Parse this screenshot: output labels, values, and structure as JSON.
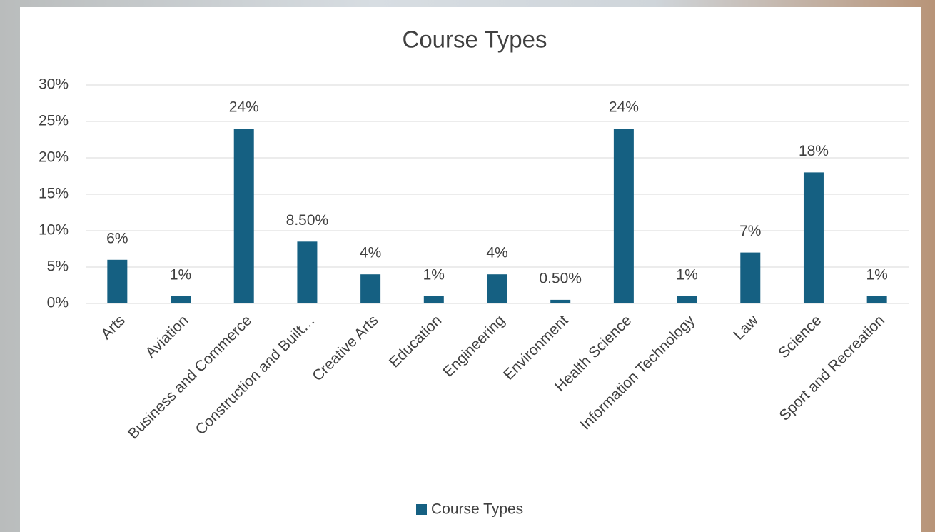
{
  "chart_data": {
    "type": "bar",
    "title": "Course Types",
    "categories": [
      "Arts",
      "Aviation",
      "Business and Commerce",
      "Construction and Built…",
      "Creative Arts",
      "Education",
      "Engineering",
      "Environment",
      "Health Science",
      "Information Technology",
      "Law",
      "Science",
      "Sport and Recreation"
    ],
    "series": [
      {
        "name": "Course Types",
        "color": "#156082",
        "values": [
          6,
          1,
          24,
          8.5,
          4,
          1,
          4,
          0.5,
          24,
          1,
          7,
          18,
          1
        ],
        "value_labels": [
          "6%",
          "1%",
          "24%",
          "8.50%",
          "4%",
          "1%",
          "4%",
          "0.50%",
          "24%",
          "1%",
          "7%",
          "18%",
          "1%"
        ]
      }
    ],
    "ylim": [
      0,
      30
    ],
    "yticks": [
      {
        "value": 0,
        "label": "0%"
      },
      {
        "value": 5,
        "label": "5%"
      },
      {
        "value": 10,
        "label": "10%"
      },
      {
        "value": 15,
        "label": "15%"
      },
      {
        "value": 20,
        "label": "20%"
      },
      {
        "value": 25,
        "label": "25%"
      },
      {
        "value": 30,
        "label": "30%"
      }
    ],
    "grid": true,
    "legend": "bottom"
  }
}
